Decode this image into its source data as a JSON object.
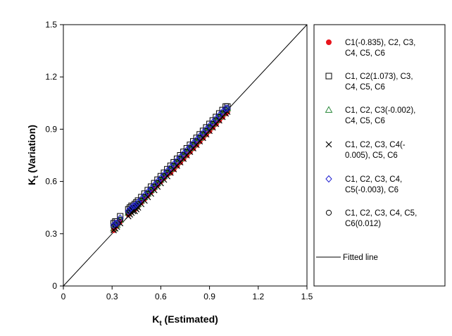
{
  "chart_data": {
    "type": "scatter",
    "xlabel": "K",
    "xlabel_sub": "t",
    "xlabel_rest": " (Estimated)",
    "ylabel": "K",
    "ylabel_sub": "t",
    "ylabel_rest": " (Variation)",
    "xlim": [
      0,
      1.5
    ],
    "ylim": [
      0,
      1.5
    ],
    "xticks": [
      "0",
      "0.3",
      "0.6",
      "0.9",
      "1.2",
      "1.5"
    ],
    "yticks": [
      "0",
      "0.3",
      "0.6",
      "0.9",
      "1.2",
      "1.5"
    ],
    "grid": false,
    "legend_position": "right",
    "x": [
      0.31,
      0.32,
      0.33,
      0.35,
      0.4,
      0.41,
      0.42,
      0.43,
      0.44,
      0.45,
      0.46,
      0.48,
      0.5,
      0.52,
      0.54,
      0.56,
      0.58,
      0.6,
      0.62,
      0.64,
      0.66,
      0.68,
      0.7,
      0.72,
      0.74,
      0.76,
      0.78,
      0.8,
      0.82,
      0.84,
      0.86,
      0.88,
      0.9,
      0.92,
      0.94,
      0.96,
      0.98,
      1.0,
      1.01
    ],
    "series": [
      {
        "name": "C1(-0.835), C2, C3, C4, C5, C6",
        "marker": "filled-circle",
        "color": "#e8141c",
        "values": [
          0.32,
          0.34,
          0.35,
          0.37,
          0.41,
          0.42,
          0.43,
          0.44,
          0.44,
          0.45,
          0.46,
          0.48,
          0.5,
          0.52,
          0.54,
          0.56,
          0.58,
          0.6,
          0.62,
          0.64,
          0.65,
          0.67,
          0.69,
          0.71,
          0.73,
          0.75,
          0.77,
          0.79,
          0.81,
          0.83,
          0.85,
          0.87,
          0.89,
          0.91,
          0.93,
          0.95,
          0.97,
          0.99,
          1.0
        ]
      },
      {
        "name": "C1, C2(1.073), C3, C4, C5, C6",
        "marker": "open-square",
        "color": "#000000",
        "values": [
          0.36,
          0.37,
          0.37,
          0.4,
          0.44,
          0.45,
          0.46,
          0.46,
          0.47,
          0.48,
          0.49,
          0.51,
          0.53,
          0.55,
          0.57,
          0.59,
          0.61,
          0.63,
          0.65,
          0.67,
          0.69,
          0.71,
          0.73,
          0.75,
          0.77,
          0.79,
          0.81,
          0.83,
          0.85,
          0.87,
          0.89,
          0.91,
          0.93,
          0.95,
          0.97,
          0.99,
          1.01,
          1.03,
          1.03
        ]
      },
      {
        "name": "C1, C2, C3(-0.002), C4, C5, C6",
        "marker": "open-triangle",
        "color": "#2e8b3e",
        "values": [
          0.33,
          0.35,
          0.35,
          0.38,
          0.42,
          0.43,
          0.44,
          0.45,
          0.45,
          0.46,
          0.47,
          0.49,
          0.51,
          0.53,
          0.55,
          0.57,
          0.59,
          0.61,
          0.63,
          0.65,
          0.67,
          0.69,
          0.71,
          0.73,
          0.75,
          0.77,
          0.79,
          0.81,
          0.83,
          0.85,
          0.87,
          0.89,
          0.91,
          0.93,
          0.95,
          0.97,
          0.99,
          1.01,
          1.02
        ]
      },
      {
        "name": "C1, C2, C3, C4(-0.005), C5, C6",
        "marker": "cross",
        "color": "#000000",
        "values": [
          0.32,
          0.33,
          0.34,
          0.36,
          0.4,
          0.41,
          0.42,
          0.43,
          0.43,
          0.44,
          0.45,
          0.47,
          0.49,
          0.51,
          0.53,
          0.55,
          0.57,
          0.59,
          0.61,
          0.63,
          0.65,
          0.67,
          0.69,
          0.71,
          0.73,
          0.75,
          0.77,
          0.79,
          0.81,
          0.83,
          0.85,
          0.87,
          0.89,
          0.91,
          0.93,
          0.95,
          0.97,
          0.99,
          1.0
        ]
      },
      {
        "name": "C1, C2, C3, C4, C5(-0.003), C6",
        "marker": "open-diamond",
        "color": "#1f1fd0",
        "values": [
          0.35,
          0.36,
          0.36,
          0.39,
          0.43,
          0.44,
          0.45,
          0.46,
          0.46,
          0.47,
          0.48,
          0.5,
          0.52,
          0.54,
          0.56,
          0.58,
          0.6,
          0.62,
          0.64,
          0.66,
          0.68,
          0.7,
          0.72,
          0.74,
          0.76,
          0.78,
          0.8,
          0.82,
          0.84,
          0.86,
          0.88,
          0.9,
          0.92,
          0.94,
          0.96,
          0.98,
          1.0,
          1.02,
          1.02
        ]
      },
      {
        "name": "C1, C2, C3, C4, C5, C6(0.012)",
        "marker": "open-circle",
        "color": "#000000",
        "values": [
          0.34,
          0.35,
          0.36,
          0.38,
          0.42,
          0.43,
          0.44,
          0.45,
          0.45,
          0.46,
          0.47,
          0.49,
          0.51,
          0.53,
          0.55,
          0.57,
          0.59,
          0.61,
          0.63,
          0.65,
          0.67,
          0.69,
          0.71,
          0.73,
          0.75,
          0.77,
          0.79,
          0.81,
          0.83,
          0.85,
          0.87,
          0.89,
          0.91,
          0.93,
          0.95,
          0.97,
          0.99,
          1.01,
          1.02
        ]
      }
    ],
    "fitted_line": {
      "name": "Fitted line",
      "x": [
        0,
        1.5
      ],
      "y": [
        0,
        1.5
      ]
    },
    "legend": {
      "items": [
        {
          "lines": [
            "C1(-0.835), C2, C3,",
            "C4, C5, C6"
          ],
          "marker": "filled-circle",
          "color": "#e8141c"
        },
        {
          "lines": [
            "C1, C2(1.073), C3,",
            "C4, C5, C6"
          ],
          "marker": "open-square",
          "color": "#000000"
        },
        {
          "lines": [
            "C1, C2, C3(-0.002),",
            "C4, C5, C6"
          ],
          "marker": "open-triangle",
          "color": "#2e8b3e"
        },
        {
          "lines": [
            "C1, C2, C3, C4(-",
            "0.005), C5, C6"
          ],
          "marker": "cross",
          "color": "#000000"
        },
        {
          "lines": [
            "C1, C2, C3, C4,",
            "C5(-0.003), C6"
          ],
          "marker": "open-diamond",
          "color": "#1f1fd0"
        },
        {
          "lines": [
            "C1, C2, C3, C4, C5,",
            "C6(0.012)"
          ],
          "marker": "open-circle",
          "color": "#000000"
        },
        {
          "lines": [
            "Fitted line"
          ],
          "marker": "line",
          "color": "#000000"
        }
      ]
    }
  }
}
